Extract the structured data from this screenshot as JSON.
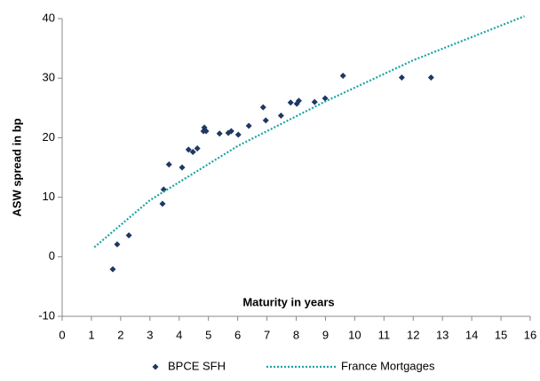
{
  "chart_data": {
    "type": "scatter",
    "y_label": "ASW spread in bp",
    "x_label": "Maturity in years",
    "xlim": [
      0,
      16
    ],
    "xticks": [
      0,
      1,
      2,
      3,
      4,
      5,
      6,
      7,
      8,
      9,
      10,
      11,
      12,
      13,
      14,
      15,
      16
    ],
    "ylim": [
      -10,
      40
    ],
    "yticks": [
      -10,
      0,
      10,
      20,
      30,
      40
    ],
    "series": [
      {
        "name": "BPCE SFH",
        "type": "scatter",
        "color": "#1f3864",
        "x": [
          1.73,
          1.88,
          2.28,
          3.43,
          3.47,
          3.65,
          4.1,
          4.32,
          4.47,
          4.62,
          4.83,
          4.86,
          4.92,
          5.38,
          5.68,
          5.78,
          6.02,
          6.38,
          6.87,
          6.96,
          7.48,
          7.81,
          8.02,
          8.09,
          8.63,
          8.99,
          9.6,
          11.61,
          12.61
        ],
        "values": [
          -2.1,
          2.1,
          3.6,
          8.9,
          11.3,
          15.5,
          15.0,
          18.0,
          17.6,
          18.2,
          21.1,
          21.7,
          21.1,
          20.7,
          20.8,
          21.1,
          20.5,
          22.0,
          25.1,
          22.9,
          23.7,
          25.9,
          25.7,
          26.2,
          26.0,
          26.6,
          30.4,
          30.1,
          30.1
        ]
      },
      {
        "name": "France Mortgages",
        "type": "line",
        "color": "#1aa3a3",
        "x": [
          1.1,
          3,
          6,
          9,
          12,
          15.8
        ],
        "values": [
          1.6,
          9.5,
          18.6,
          26.1,
          33.0,
          40.4
        ]
      }
    ]
  }
}
